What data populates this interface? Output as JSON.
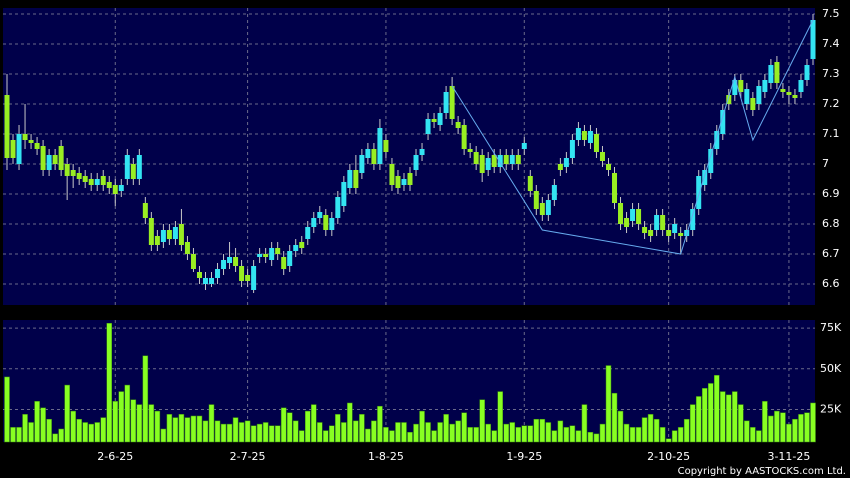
{
  "chart_data": {
    "type": "candlestick",
    "categories": [
      null,
      null,
      null,
      null,
      null,
      null,
      null,
      null,
      null,
      null,
      null,
      null,
      null,
      null,
      null,
      null,
      null,
      null,
      "2-6-25",
      null,
      null,
      null,
      null,
      null,
      null,
      null,
      null,
      null,
      null,
      null,
      null,
      null,
      null,
      null,
      null,
      null,
      null,
      null,
      null,
      null,
      "2-7-25",
      null,
      null,
      null,
      null,
      null,
      null,
      null,
      null,
      null,
      null,
      null,
      null,
      null,
      null,
      null,
      null,
      null,
      null,
      null,
      null,
      null,
      null,
      "1-8-25",
      null,
      null,
      null,
      null,
      null,
      null,
      null,
      null,
      null,
      null,
      null,
      null,
      null,
      null,
      null,
      null,
      null,
      null,
      null,
      null,
      null,
      null,
      "1-9-25",
      null,
      null,
      null,
      null,
      null,
      null,
      null,
      null,
      null,
      null,
      null,
      null,
      null,
      null,
      null,
      null,
      null,
      null,
      null,
      null,
      null,
      null,
      null,
      "2-10-25",
      null,
      null,
      null,
      null,
      null,
      null,
      null,
      null,
      null,
      null,
      null,
      null,
      null,
      null,
      null,
      null,
      null,
      null,
      null,
      "3-11-25",
      null,
      null,
      null,
      null
    ],
    "open": [
      7.23,
      7.08,
      7.0,
      7.1,
      7.08,
      7.07,
      7.06,
      6.98,
      7.03,
      7.06,
      7.0,
      6.98,
      6.97,
      6.96,
      6.95,
      6.93,
      6.96,
      6.94,
      6.93,
      6.91,
      6.95,
      7.0,
      6.95,
      6.87,
      6.82,
      6.76,
      6.74,
      6.78,
      6.75,
      6.8,
      6.74,
      6.7,
      6.64,
      6.6,
      6.6,
      6.62,
      6.65,
      6.67,
      6.69,
      6.66,
      6.63,
      6.58,
      6.69,
      6.7,
      6.68,
      6.72,
      6.69,
      6.66,
      6.71,
      6.74,
      6.75,
      6.79,
      6.82,
      6.83,
      6.78,
      6.82,
      6.86,
      6.92,
      6.98,
      6.97,
      7.02,
      7.05,
      7.0,
      7.08,
      7.0,
      6.96,
      6.93,
      6.97,
      6.98,
      7.03,
      7.1,
      7.15,
      7.13,
      7.17,
      7.26,
      7.14,
      7.13,
      7.05,
      7.04,
      7.03,
      6.98,
      7.03,
      6.99,
      7.03,
      7.0,
      7.03,
      7.05,
      6.96,
      6.91,
      6.87,
      6.83,
      6.88,
      7.0,
      6.99,
      7.02,
      7.08,
      7.11,
      7.07,
      7.1,
      7.04,
      7.0,
      6.97,
      6.87,
      6.82,
      6.81,
      6.85,
      6.79,
      6.78,
      6.78,
      6.83,
      6.78,
      6.77,
      6.77,
      6.76,
      6.78,
      6.85,
      6.93,
      6.97,
      7.05,
      7.1,
      7.23,
      7.23,
      7.28,
      7.2,
      7.22,
      7.2,
      7.24,
      7.27,
      7.34,
      7.25,
      7.24,
      7.23,
      7.24,
      7.28,
      7.35
    ],
    "high": [
      7.3,
      7.1,
      7.13,
      7.2,
      7.1,
      7.09,
      7.08,
      7.05,
      7.05,
      7.08,
      7.02,
      7.0,
      6.99,
      6.98,
      6.97,
      6.97,
      6.98,
      6.96,
      6.95,
      6.95,
      7.05,
      7.02,
      7.05,
      6.89,
      6.84,
      6.78,
      6.8,
      6.8,
      6.81,
      6.85,
      6.76,
      6.72,
      6.66,
      6.64,
      6.64,
      6.67,
      6.7,
      6.74,
      6.72,
      6.68,
      6.65,
      6.68,
      6.72,
      6.72,
      6.74,
      6.74,
      6.71,
      6.73,
      6.75,
      6.76,
      6.81,
      6.84,
      6.86,
      6.85,
      6.84,
      6.91,
      6.96,
      7.0,
      7.03,
      7.05,
      7.07,
      7.07,
      7.15,
      7.1,
      7.02,
      6.98,
      6.97,
      6.99,
      7.05,
      7.07,
      7.17,
      7.17,
      7.19,
      7.26,
      7.29,
      7.16,
      7.15,
      7.07,
      7.06,
      7.05,
      7.04,
      7.05,
      7.05,
      7.05,
      7.05,
      7.05,
      7.09,
      6.98,
      6.93,
      6.89,
      6.9,
      6.95,
      7.02,
      7.04,
      7.1,
      7.14,
      7.13,
      7.13,
      7.12,
      7.06,
      7.02,
      6.99,
      6.89,
      6.84,
      6.87,
      6.87,
      6.81,
      6.8,
      6.85,
      6.85,
      6.8,
      6.82,
      6.79,
      6.8,
      6.87,
      6.98,
      7.0,
      7.07,
      7.13,
      7.2,
      7.25,
      7.3,
      7.3,
      7.27,
      7.24,
      7.28,
      7.3,
      7.35,
      7.36,
      7.27,
      7.26,
      7.25,
      7.3,
      7.35,
      7.5
    ],
    "low": [
      6.98,
      7.0,
      6.98,
      7.05,
      7.05,
      7.03,
      6.96,
      6.96,
      6.98,
      6.96,
      6.88,
      6.92,
      6.93,
      6.92,
      6.91,
      6.91,
      6.91,
      6.9,
      6.86,
      6.89,
      6.93,
      6.93,
      6.93,
      6.8,
      6.71,
      6.71,
      6.72,
      6.73,
      6.73,
      6.71,
      6.68,
      6.64,
      6.6,
      6.58,
      6.59,
      6.6,
      6.63,
      6.65,
      6.64,
      6.59,
      6.59,
      6.57,
      6.67,
      6.67,
      6.66,
      6.68,
      6.63,
      6.64,
      6.69,
      6.7,
      6.73,
      6.77,
      6.8,
      6.76,
      6.76,
      6.8,
      6.84,
      6.9,
      6.9,
      6.95,
      7.0,
      6.98,
      6.98,
      7.02,
      6.91,
      6.9,
      6.91,
      6.91,
      6.96,
      7.01,
      7.08,
      7.12,
      7.11,
      7.15,
      7.13,
      7.1,
      7.03,
      7.02,
      6.98,
      6.94,
      6.96,
      6.97,
      6.97,
      6.98,
      6.98,
      6.98,
      7.03,
      6.89,
      6.83,
      6.81,
      6.81,
      6.86,
      6.96,
      6.97,
      7.0,
      7.06,
      7.06,
      7.05,
      7.02,
      6.99,
      6.96,
      6.85,
      6.78,
      6.77,
      6.79,
      6.78,
      6.75,
      6.74,
      6.76,
      6.76,
      6.74,
      6.75,
      6.7,
      6.74,
      6.76,
      6.83,
      6.91,
      6.95,
      7.03,
      7.08,
      7.18,
      7.21,
      7.22,
      7.18,
      7.16,
      7.18,
      7.22,
      7.25,
      7.25,
      7.22,
      7.2,
      7.2,
      7.22,
      7.26,
      7.33
    ],
    "close": [
      7.02,
      7.02,
      7.1,
      7.08,
      7.07,
      7.05,
      6.98,
      7.03,
      7.0,
      6.98,
      6.96,
      6.96,
      6.95,
      6.94,
      6.93,
      6.95,
      6.93,
      6.92,
      6.9,
      6.93,
      7.03,
      6.95,
      7.03,
      6.82,
      6.73,
      6.73,
      6.78,
      6.75,
      6.79,
      6.73,
      6.7,
      6.65,
      6.62,
      6.62,
      6.62,
      6.65,
      6.68,
      6.69,
      6.66,
      6.61,
      6.61,
      6.66,
      6.7,
      6.69,
      6.72,
      6.7,
      6.65,
      6.71,
      6.73,
      6.72,
      6.79,
      6.82,
      6.84,
      6.78,
      6.82,
      6.89,
      6.94,
      6.98,
      6.92,
      7.03,
      7.05,
      7.0,
      7.12,
      7.04,
      6.93,
      6.92,
      6.95,
      6.93,
      7.03,
      7.05,
      7.15,
      7.14,
      7.17,
      7.24,
      7.15,
      7.12,
      7.05,
      7.04,
      7.0,
      6.97,
      7.02,
      6.99,
      7.03,
      7.0,
      7.03,
      7.0,
      7.07,
      6.91,
      6.85,
      6.83,
      6.88,
      6.93,
      6.98,
      7.02,
      7.08,
      7.12,
      7.08,
      7.11,
      7.04,
      7.01,
      6.98,
      6.87,
      6.8,
      6.79,
      6.85,
      6.8,
      6.77,
      6.76,
      6.83,
      6.78,
      6.76,
      6.8,
      6.76,
      6.78,
      6.85,
      6.96,
      6.98,
      7.05,
      7.11,
      7.18,
      7.2,
      7.28,
      7.24,
      7.25,
      7.18,
      7.26,
      7.28,
      7.33,
      7.27,
      7.24,
      7.23,
      7.22,
      7.28,
      7.33,
      7.48
    ],
    "up_color": "#33e4f2",
    "down_color": "#99ee22",
    "ylim": [
      6.53,
      7.52
    ],
    "yticks": [
      6.6,
      6.7,
      6.8,
      6.9,
      7,
      7.1,
      7.2,
      7.3,
      7.4,
      7.5
    ],
    "grid": true,
    "trendline": {
      "x": [
        74,
        89,
        112,
        121,
        124,
        134
      ],
      "values": [
        7.26,
        6.78,
        6.7,
        7.29,
        7.08,
        7.48
      ],
      "color": "#66aaee"
    },
    "volume": {
      "color": "#88ff22",
      "values": [
        45000,
        14000,
        14000,
        22000,
        17000,
        30000,
        26000,
        19000,
        10000,
        13000,
        40000,
        24000,
        19000,
        17000,
        16000,
        17000,
        20000,
        78000,
        30000,
        36000,
        40000,
        31000,
        28000,
        58000,
        28000,
        24000,
        13000,
        22000,
        20000,
        22000,
        20000,
        21000,
        21000,
        18000,
        28000,
        18000,
        16000,
        16000,
        20000,
        17000,
        18000,
        15000,
        16000,
        17000,
        15000,
        15000,
        26000,
        23000,
        18000,
        12000,
        24000,
        28000,
        17000,
        12000,
        15000,
        22000,
        17000,
        29000,
        18000,
        22000,
        13000,
        18000,
        27000,
        14000,
        12000,
        17000,
        17000,
        11000,
        16000,
        24000,
        17000,
        12000,
        17000,
        22000,
        16000,
        18000,
        23000,
        14000,
        14000,
        31000,
        16000,
        12000,
        36000,
        16000,
        17000,
        14000,
        15000,
        15000,
        19000,
        19000,
        17000,
        12000,
        18000,
        14000,
        15000,
        12000,
        28000,
        11000,
        10000,
        16000,
        52000,
        35000,
        24000,
        16000,
        14000,
        14000,
        20000,
        22000,
        19000,
        14000,
        7000,
        12000,
        14000,
        19000,
        28000,
        33000,
        38000,
        41000,
        46000,
        36000,
        34000,
        36000,
        28000,
        18000,
        14000,
        12000,
        30000,
        21000,
        24000,
        23000,
        16000,
        19000,
        22000,
        23000,
        29000
      ],
      "ylim": [
        5000,
        80000
      ],
      "yticks": [
        {
          "value": 25000,
          "label": "25K"
        },
        {
          "value": 50000,
          "label": "50K"
        },
        {
          "value": 75000,
          "label": "75K"
        }
      ]
    },
    "footer": "Copyright by AASTOCKS.com Ltd."
  }
}
